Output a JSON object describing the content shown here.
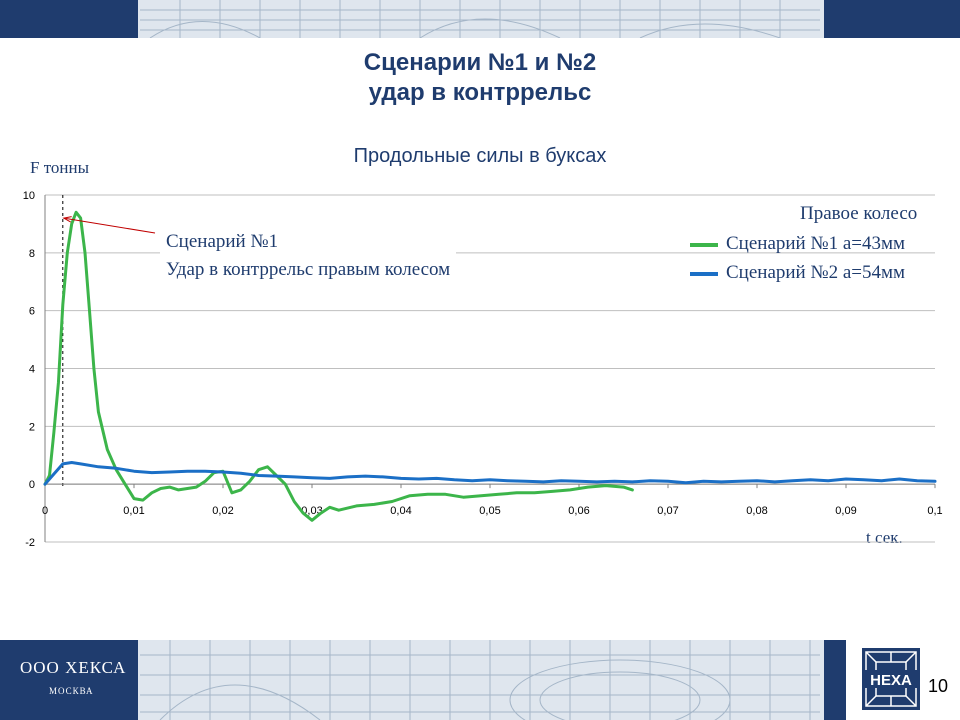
{
  "slide": {
    "title_line1": "Сценарии №1 и №2",
    "title_line2": "удар в контррельс",
    "page_number": "10",
    "company": "ООО ХЕКСА",
    "city": "МОСКВА",
    "logo_text": "HEXA"
  },
  "annotation": {
    "line1": "Сценарий №1",
    "line2": "Удар в контррельс правым колесом"
  },
  "colors": {
    "navy": "#1f3c6e",
    "series1": "#3cb54a",
    "series2": "#1b6fc6",
    "arrow": "#c00000"
  },
  "chart_data": {
    "type": "line",
    "title": "Продольные силы в буксах",
    "ylabel": "F тонны",
    "xlabel": "t сек.",
    "legend_title": "Правое колесо",
    "legend_position": "right",
    "xlim": [
      0,
      0.1
    ],
    "ylim": [
      -2,
      10
    ],
    "x_ticks": [
      "0",
      "0,01",
      "0,02",
      "0,03",
      "0,04",
      "0,05",
      "0,06",
      "0,07",
      "0,08",
      "0,09",
      "0,1"
    ],
    "y_ticks": [
      "-2",
      "0",
      "2",
      "4",
      "6",
      "8",
      "10"
    ],
    "grid": true,
    "marker_line_x": 0.002,
    "series": [
      {
        "name": "Сценарий №1 a=43мм",
        "x": [
          0,
          0.0005,
          0.001,
          0.0015,
          0.002,
          0.0025,
          0.003,
          0.0035,
          0.004,
          0.0045,
          0.005,
          0.0055,
          0.006,
          0.007,
          0.008,
          0.009,
          0.01,
          0.011,
          0.012,
          0.013,
          0.014,
          0.015,
          0.016,
          0.017,
          0.018,
          0.019,
          0.02,
          0.021,
          0.022,
          0.023,
          0.024,
          0.025,
          0.026,
          0.027,
          0.028,
          0.029,
          0.03,
          0.031,
          0.032,
          0.033,
          0.035,
          0.037,
          0.039,
          0.041,
          0.043,
          0.045,
          0.047,
          0.049,
          0.051,
          0.053,
          0.055,
          0.057,
          0.059,
          0.061,
          0.063,
          0.065,
          0.066
        ],
        "y": [
          0,
          0.3,
          1.8,
          3.5,
          6.2,
          8.0,
          9.0,
          9.4,
          9.2,
          8.0,
          6.0,
          4.0,
          2.5,
          1.2,
          0.5,
          0.0,
          -0.5,
          -0.55,
          -0.3,
          -0.15,
          -0.1,
          -0.2,
          -0.15,
          -0.1,
          0.1,
          0.4,
          0.45,
          -0.3,
          -0.2,
          0.1,
          0.5,
          0.6,
          0.3,
          0.0,
          -0.6,
          -1.0,
          -1.25,
          -1.0,
          -0.8,
          -0.9,
          -0.75,
          -0.7,
          -0.6,
          -0.4,
          -0.35,
          -0.35,
          -0.45,
          -0.4,
          -0.35,
          -0.3,
          -0.3,
          -0.25,
          -0.2,
          -0.1,
          -0.05,
          -0.1,
          -0.2
        ]
      },
      {
        "name": "Сценарий №2 a=54мм",
        "x": [
          0,
          0.001,
          0.002,
          0.003,
          0.004,
          0.006,
          0.008,
          0.01,
          0.012,
          0.014,
          0.016,
          0.018,
          0.02,
          0.022,
          0.024,
          0.026,
          0.028,
          0.03,
          0.032,
          0.034,
          0.036,
          0.038,
          0.04,
          0.042,
          0.044,
          0.046,
          0.048,
          0.05,
          0.052,
          0.054,
          0.056,
          0.058,
          0.06,
          0.062,
          0.064,
          0.066,
          0.068,
          0.07,
          0.072,
          0.074,
          0.076,
          0.078,
          0.08,
          0.082,
          0.084,
          0.086,
          0.088,
          0.09,
          0.092,
          0.094,
          0.096,
          0.098,
          0.1
        ],
        "y": [
          0,
          0.35,
          0.7,
          0.75,
          0.7,
          0.6,
          0.55,
          0.45,
          0.4,
          0.42,
          0.45,
          0.45,
          0.42,
          0.38,
          0.3,
          0.28,
          0.25,
          0.22,
          0.2,
          0.25,
          0.28,
          0.25,
          0.2,
          0.18,
          0.2,
          0.15,
          0.12,
          0.15,
          0.12,
          0.1,
          0.08,
          0.12,
          0.1,
          0.08,
          0.1,
          0.08,
          0.12,
          0.1,
          0.05,
          0.1,
          0.08,
          0.1,
          0.12,
          0.08,
          0.12,
          0.15,
          0.12,
          0.18,
          0.15,
          0.12,
          0.18,
          0.12,
          0.1
        ]
      }
    ]
  }
}
